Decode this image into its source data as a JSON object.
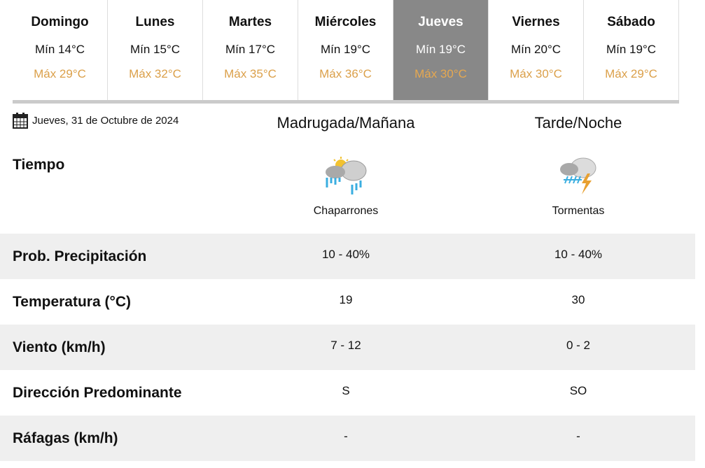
{
  "days": [
    {
      "name": "Domingo",
      "min": "Mín 14°C",
      "max": "Máx 29°C"
    },
    {
      "name": "Lunes",
      "min": "Mín 15°C",
      "max": "Máx 32°C"
    },
    {
      "name": "Martes",
      "min": "Mín 17°C",
      "max": "Máx 35°C"
    },
    {
      "name": "Miércoles",
      "min": "Mín 19°C",
      "max": "Máx 36°C"
    },
    {
      "name": "Jueves",
      "min": "Mín 19°C",
      "max": "Máx 30°C",
      "active": true
    },
    {
      "name": "Viernes",
      "min": "Mín 20°C",
      "max": "Máx 30°C"
    },
    {
      "name": "Sábado",
      "min": "Mín 19°C",
      "max": "Máx 29°C"
    }
  ],
  "colors": {
    "max_temp": "#dba04a",
    "active_tab": "#888888",
    "row_alt": "#efefef"
  },
  "date": "Jueves, 31 de Octubre de 2024",
  "columns": [
    "Madrugada/Mañana",
    "Tarde/Noche"
  ],
  "weather": {
    "label": "Tiempo",
    "values": [
      {
        "icon": "sun-cloud-rain-icon",
        "text": "Chaparrones"
      },
      {
        "icon": "cloud-storm-icon",
        "text": "Tormentas"
      }
    ]
  },
  "rows": [
    {
      "label": "Prob. Precipitación",
      "values": [
        "10 - 40%",
        "10 - 40%"
      ]
    },
    {
      "label": "Temperatura (°C)",
      "values": [
        "19",
        "30"
      ]
    },
    {
      "label": "Viento (km/h)",
      "values": [
        "7 - 12",
        "0 - 2"
      ]
    },
    {
      "label": "Dirección Predominante",
      "values": [
        "S",
        "SO"
      ]
    },
    {
      "label": "Ráfagas (km/h)",
      "values": [
        "-",
        "-"
      ]
    }
  ]
}
